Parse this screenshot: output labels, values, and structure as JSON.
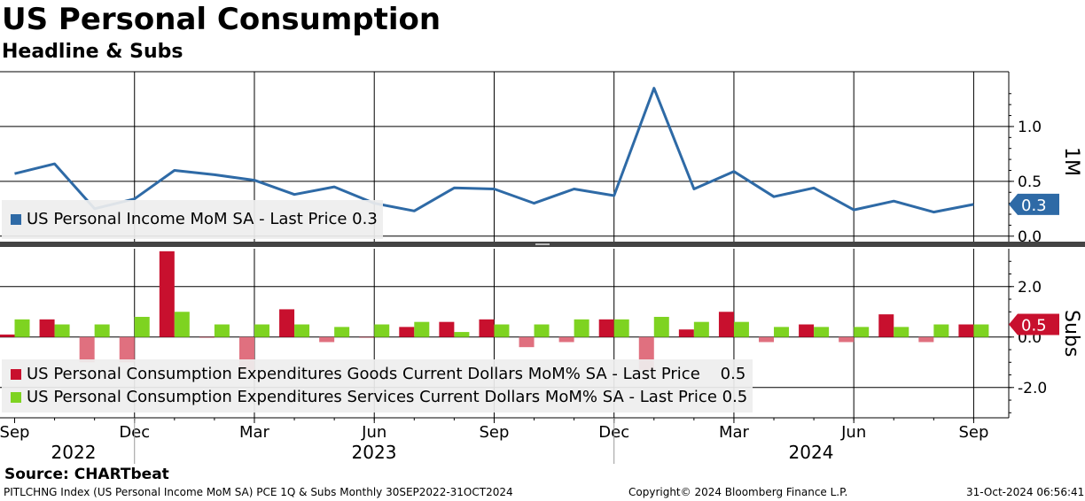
{
  "header": {
    "title": "US Personal Consumption",
    "subtitle": "Headline & Subs"
  },
  "footer": {
    "source": "Source: CHARTbeat",
    "ticker": "PITLCHNG Index (US Personal Income MoM SA) PCE 1Q & Subs  Monthly 30SEP2022-31OCT2024",
    "copyright": "Copyright© 2024 Bloomberg Finance L.P.",
    "timestamp": "31-Oct-2024 06:56:41"
  },
  "colors": {
    "income": "#2e6aa6",
    "goods": "#c8102e",
    "goods_negative": "#e0707f",
    "services": "#7ed321"
  },
  "chart_data": [
    {
      "type": "line",
      "panel_label": "1M",
      "x": [
        "2022-09",
        "2022-10",
        "2022-11",
        "2022-12",
        "2023-01",
        "2023-02",
        "2023-03",
        "2023-04",
        "2023-05",
        "2023-06",
        "2023-07",
        "2023-08",
        "2023-09",
        "2023-10",
        "2023-11",
        "2023-12",
        "2024-01",
        "2024-02",
        "2024-03",
        "2024-04",
        "2024-05",
        "2024-06",
        "2024-07",
        "2024-08",
        "2024-09"
      ],
      "series": [
        {
          "name": "US Personal Income MoM SA - Last Price 0.3",
          "values": [
            0.57,
            0.66,
            0.25,
            0.34,
            0.6,
            0.56,
            0.51,
            0.38,
            0.45,
            0.3,
            0.23,
            0.44,
            0.43,
            0.3,
            0.43,
            0.37,
            1.35,
            0.43,
            0.59,
            0.36,
            0.44,
            0.24,
            0.32,
            0.22,
            0.29
          ]
        }
      ],
      "last_value_label": "0.3",
      "y_ticks": [
        "0.0",
        "0.5",
        "1.0"
      ],
      "ylim": [
        -0.05,
        1.5
      ],
      "grid": true,
      "legend_position": "bottom-left"
    },
    {
      "type": "bar",
      "panel_label": "Subs",
      "x": [
        "2022-09",
        "2022-10",
        "2022-11",
        "2022-12",
        "2023-01",
        "2023-02",
        "2023-03",
        "2023-04",
        "2023-05",
        "2023-06",
        "2023-07",
        "2023-08",
        "2023-09",
        "2023-10",
        "2023-11",
        "2023-12",
        "2024-01",
        "2024-02",
        "2024-03",
        "2024-04",
        "2024-05",
        "2024-06",
        "2024-07",
        "2024-08",
        "2024-09"
      ],
      "series": [
        {
          "name": "US Personal Consumption Expenditures Goods Current Dollars MoM% SA - Last Price    0.5",
          "values": [
            0.1,
            0.7,
            -1.0,
            -1.0,
            3.4,
            0.0,
            -1.3,
            1.1,
            -0.2,
            0.0,
            0.4,
            0.6,
            0.7,
            -0.4,
            -0.2,
            0.7,
            -1.3,
            0.3,
            1.0,
            -0.2,
            0.5,
            -0.2,
            0.9,
            -0.2,
            0.5
          ]
        },
        {
          "name": "US Personal Consumption Expenditures Services Current Dollars MoM% SA - Last Price 0.5",
          "values": [
            0.7,
            0.5,
            0.5,
            0.8,
            1.0,
            0.5,
            0.5,
            0.5,
            0.4,
            0.5,
            0.6,
            0.2,
            0.5,
            0.5,
            0.7,
            0.7,
            0.8,
            0.6,
            0.6,
            0.4,
            0.4,
            0.4,
            0.4,
            0.5,
            0.5
          ]
        }
      ],
      "last_value_label": "0.5",
      "y_ticks": [
        "-2.0",
        "0.0",
        "2.0"
      ],
      "ylim": [
        -3.2,
        3.5
      ],
      "grid": true,
      "legend_position": "bottom-left"
    }
  ],
  "x_axis": {
    "month_ticks": [
      "Sep",
      "Dec",
      "Mar",
      "Jun",
      "Sep",
      "Dec",
      "Mar",
      "Jun",
      "Sep"
    ],
    "years": [
      "2022",
      "2023",
      "2024"
    ]
  }
}
